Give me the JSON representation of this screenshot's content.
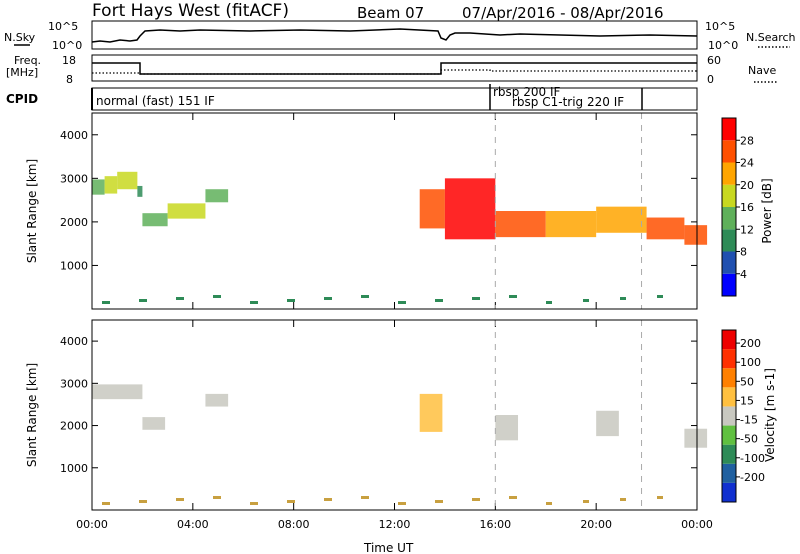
{
  "header": {
    "station": "Fort Hays West (fitACF)",
    "beam": "Beam 07",
    "date_range": "07/Apr/2016 - 08/Apr/2016"
  },
  "panels": {
    "nsky": {
      "label": "N.Sky",
      "ticks": [
        "10^5",
        "10^0"
      ],
      "right_label": "N.Search",
      "right_ticks": [
        "10^5",
        "10^0"
      ]
    },
    "freq": {
      "label_line1": "Freq.",
      "label_line2": "[MHz]",
      "ticks": [
        "18",
        "8"
      ],
      "right_label": "Nave",
      "right_ticks": [
        "60",
        "0"
      ]
    },
    "cpid": {
      "label": "CPID",
      "modes": [
        "normal (fast) 151 IF",
        "rbsp 200 IF",
        "rbsp C1-trig 220 IF"
      ]
    }
  },
  "colors": {
    "power_scale": [
      "#0000ff",
      "#2050b0",
      "#2e8b57",
      "#5fb05a",
      "#c8d820",
      "#ffa500",
      "#ff5000",
      "#ff0000"
    ],
    "velocity_scale": [
      "#1030d0",
      "#2060a0",
      "#2e8b57",
      "#60c040",
      "#c8c8c0",
      "#ffc040",
      "#ff8000",
      "#ff3000",
      "#ee0000"
    ]
  },
  "chart_data": [
    {
      "type": "heatmap",
      "title": "Power",
      "xlabel": "",
      "ylabel": "Slant Range [km]",
      "x_ticks": [
        "00:00",
        "04:00",
        "08:00",
        "12:00",
        "16:00",
        "20:00",
        "00:00"
      ],
      "xlim": [
        0,
        24
      ],
      "ylim": [
        0,
        4500
      ],
      "y_ticks": [
        "4000",
        "3000",
        "2000",
        "1000"
      ],
      "y_tick_values": [
        4000,
        3000,
        2000,
        1000
      ],
      "colorbar": {
        "label": "Power [dB]",
        "ticks": [
          "28",
          "24",
          "20",
          "16",
          "12",
          "8",
          "4"
        ],
        "range": [
          0,
          32
        ]
      },
      "echo_bands": [
        {
          "t": 0.0,
          "center": 2800,
          "width": 350,
          "value": 14
        },
        {
          "t": 0.5,
          "center": 2850,
          "width": 400,
          "value": 18
        },
        {
          "t": 1.0,
          "center": 2950,
          "width": 400,
          "value": 16
        },
        {
          "t": 1.8,
          "center": 2700,
          "width": 250,
          "value": 10
        },
        {
          "t": 2.0,
          "center": 2050,
          "width": 300,
          "value": 14
        },
        {
          "t": 3.0,
          "center": 2250,
          "width": 350,
          "value": 16
        },
        {
          "t": 4.5,
          "center": 2600,
          "width": 300,
          "value": 12
        },
        {
          "t": 13.0,
          "center": 2300,
          "width": 900,
          "value": 26
        },
        {
          "t": 14.0,
          "center": 2300,
          "width": 1400,
          "value": 28
        },
        {
          "t": 16.0,
          "center": 1950,
          "width": 600,
          "value": 24
        },
        {
          "t": 18.0,
          "center": 1950,
          "width": 600,
          "value": 22
        },
        {
          "t": 20.0,
          "center": 2050,
          "width": 600,
          "value": 20
        },
        {
          "t": 22.0,
          "center": 1850,
          "width": 500,
          "value": 24
        },
        {
          "t": 23.5,
          "center": 1700,
          "width": 450,
          "value": 26
        }
      ]
    },
    {
      "type": "heatmap",
      "title": "Velocity",
      "xlabel": "Time UT",
      "ylabel": "Slant Range [km]",
      "x_ticks": [
        "00:00",
        "04:00",
        "08:00",
        "12:00",
        "16:00",
        "20:00",
        "00:00"
      ],
      "xlim": [
        0,
        24
      ],
      "ylim": [
        0,
        4500
      ],
      "y_ticks": [
        "4000",
        "3000",
        "2000",
        "1000"
      ],
      "y_tick_values": [
        4000,
        3000,
        2000,
        1000
      ],
      "colorbar": {
        "label": "Velocity [m s-1]",
        "ticks": [
          "200",
          "100",
          "50",
          "15",
          "-15",
          "-50",
          "-100",
          "-200"
        ],
        "range": [
          -250,
          250
        ]
      },
      "echo_bands": [
        {
          "t": 0.0,
          "center": 2800,
          "width": 350,
          "value": 0
        },
        {
          "t": 2.0,
          "center": 2050,
          "width": 300,
          "value": 0
        },
        {
          "t": 4.5,
          "center": 2600,
          "width": 300,
          "value": 0
        },
        {
          "t": 13.0,
          "center": 2300,
          "width": 900,
          "value": 40
        },
        {
          "t": 16.0,
          "center": 1950,
          "width": 600,
          "value": 0
        },
        {
          "t": 20.0,
          "center": 2050,
          "width": 600,
          "value": 0
        },
        {
          "t": 23.5,
          "center": 1700,
          "width": 450,
          "value": 0
        }
      ]
    }
  ]
}
